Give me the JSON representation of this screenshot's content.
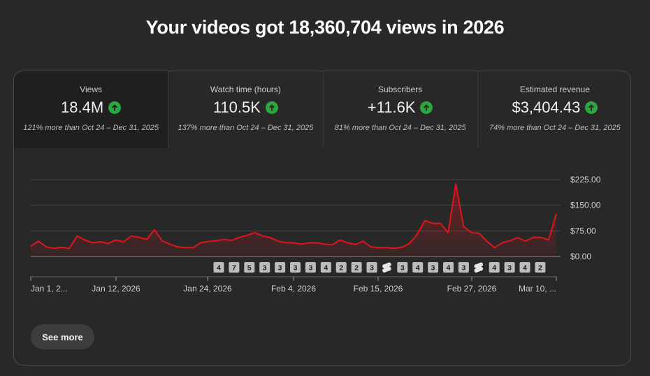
{
  "headline": "Your videos got 18,360,704 views in 2026",
  "tiles": [
    {
      "title": "Views",
      "value": "18.4M",
      "compare": "121% more than Oct 24 – Dec 31, 2025",
      "trend_icon": "arrow-up-circle-icon"
    },
    {
      "title": "Watch time (hours)",
      "value": "110.5K",
      "compare": "137% more than Oct 24 – Dec 31, 2025",
      "trend_icon": "arrow-up-circle-icon"
    },
    {
      "title": "Subscribers",
      "value": "+11.6K",
      "compare": "81% more than Oct 24 – Dec 31, 2025",
      "trend_icon": "arrow-up-circle-icon"
    },
    {
      "title": "Estimated revenue",
      "value": "$3,404.43",
      "compare": "74% more than Oct 24 – Dec 31, 2025",
      "trend_icon": "arrow-up-circle-icon"
    }
  ],
  "active_tile": 0,
  "colors": {
    "line": "#e0151c",
    "up_badge": "#2ba640",
    "background": "#282828",
    "tile_active": "#1f1f1f"
  },
  "chart_data": {
    "type": "area",
    "series": [
      {
        "values": [
          30,
          45,
          28,
          24,
          27,
          24,
          60,
          48,
          40,
          43,
          38,
          48,
          43,
          60,
          56,
          50,
          78,
          46,
          36,
          28,
          26,
          26,
          40,
          44,
          46,
          50,
          47,
          56,
          62,
          70,
          60,
          55,
          45,
          40,
          40,
          36,
          40,
          40,
          36,
          34,
          48,
          40,
          35,
          45,
          28,
          26,
          26,
          24,
          27,
          38,
          65,
          105,
          97,
          97,
          70,
          212,
          88,
          70,
          68,
          45,
          26,
          40,
          46,
          55,
          45,
          56,
          56,
          48,
          125
        ]
      }
    ],
    "x_tick_labels": [
      "Jan 1, 2...",
      "Jan 12, 2026",
      "Jan 24, 2026",
      "Feb 4, 2026",
      "Feb 15, 2026",
      "Feb 27, 2026",
      "Mar 10, ..."
    ],
    "y_tick_labels": [
      "$225.00",
      "$150.00",
      "$75.00",
      "$0.00"
    ],
    "y_ticks": [
      225,
      150,
      75,
      0
    ],
    "ylim": [
      0,
      225
    ],
    "grid": true,
    "upload_markers": [
      "4",
      "7",
      "5",
      "3",
      "3",
      "3",
      "3",
      "4",
      "2",
      "2",
      "3",
      "shorts",
      "3",
      "4",
      "3",
      "4",
      "3",
      "shorts",
      "4",
      "3",
      "4",
      "2"
    ]
  },
  "see_more_label": "See more"
}
